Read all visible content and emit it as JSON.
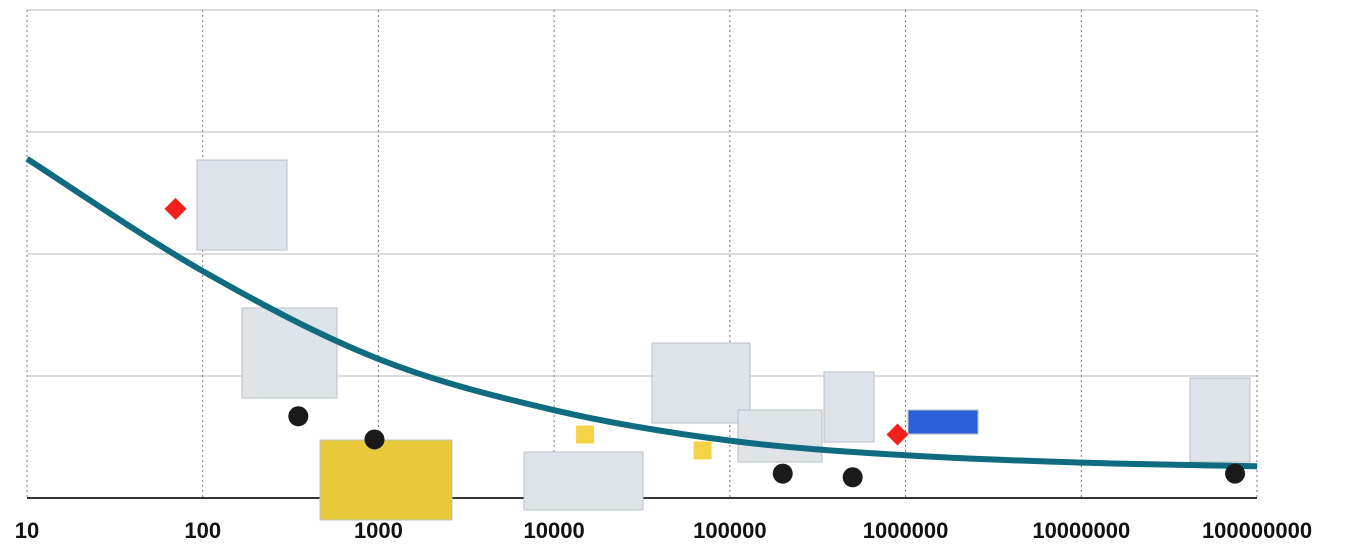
{
  "chart_data": {
    "type": "scatter",
    "log_x": true,
    "xlim": [
      10,
      100000000
    ],
    "xticks": [
      10,
      100,
      1000,
      10000,
      100000,
      1000000,
      10000000,
      100000000
    ],
    "ylim": [
      0,
      4
    ],
    "yticks": [
      0,
      1,
      2,
      3,
      4
    ],
    "grid": true,
    "series": [
      {
        "type": "line",
        "color": "#0e6b80",
        "x": [
          10,
          100,
          1000,
          10000,
          100000,
          1000000,
          10000000,
          100000000
        ],
        "values": [
          2.78,
          1.86,
          1.14,
          0.72,
          0.47,
          0.35,
          0.29,
          0.26
        ]
      },
      {
        "marker": "diamond",
        "color": "#f0201a",
        "x": [
          70,
          900000
        ],
        "values": [
          2.37,
          0.52
        ]
      },
      {
        "marker": "circle",
        "color": "#1a1a1a",
        "x": [
          350,
          950,
          200000,
          500000,
          75000000
        ],
        "values": [
          0.67,
          0.48,
          0.2,
          0.17,
          0.2
        ]
      },
      {
        "marker": "square",
        "color": "#f5d547",
        "x": [
          15000,
          70000
        ],
        "values": [
          0.52,
          0.39
        ]
      }
    ]
  }
}
